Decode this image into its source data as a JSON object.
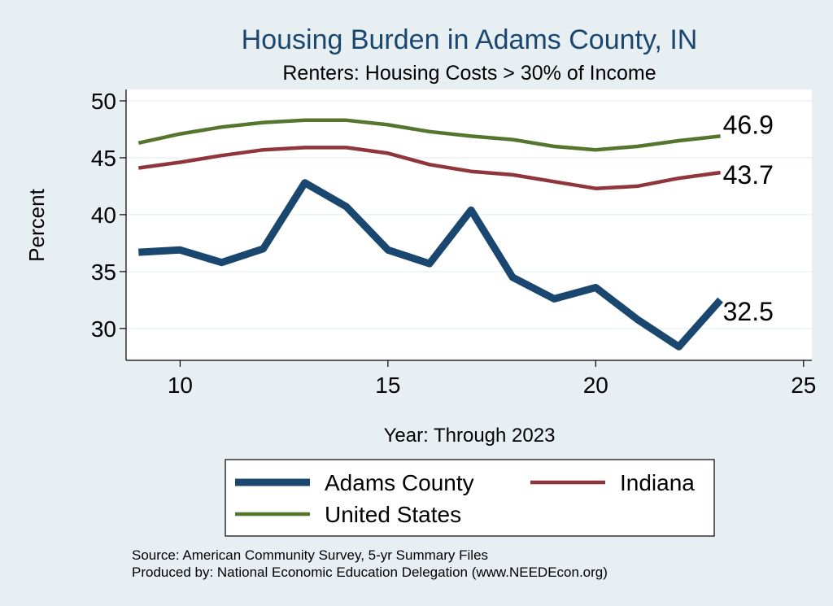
{
  "chart_data": {
    "type": "line",
    "title": "Housing Burden in Adams County, IN",
    "subtitle": "Renters: Housing Costs > 30% of Income",
    "xlabel": "Year: Through 2023",
    "ylabel": "Percent",
    "xlim": [
      8.7,
      25.2
    ],
    "ylim": [
      27.2,
      51
    ],
    "xticks": [
      10,
      15,
      20,
      25
    ],
    "yticks": [
      30,
      35,
      40,
      45,
      50
    ],
    "x": [
      9,
      10,
      11,
      12,
      13,
      14,
      15,
      16,
      17,
      18,
      19,
      20,
      21,
      22,
      23
    ],
    "series": [
      {
        "name": "Adams County",
        "color": "#1a476f",
        "values": [
          36.7,
          36.9,
          35.8,
          37.0,
          42.8,
          40.7,
          36.9,
          35.7,
          40.4,
          34.5,
          32.6,
          33.6,
          30.8,
          28.4,
          32.5
        ],
        "end_label": "32.5"
      },
      {
        "name": "Indiana",
        "color": "#90353b",
        "values": [
          44.1,
          44.6,
          45.2,
          45.7,
          45.9,
          45.9,
          45.4,
          44.4,
          43.8,
          43.5,
          42.9,
          42.3,
          42.5,
          43.2,
          43.7
        ],
        "end_label": "43.7"
      },
      {
        "name": "United States",
        "color": "#55752f",
        "values": [
          46.3,
          47.1,
          47.7,
          48.1,
          48.3,
          48.3,
          47.9,
          47.3,
          46.9,
          46.6,
          46.0,
          45.7,
          46.0,
          46.5,
          46.9
        ],
        "end_label": "46.9"
      }
    ],
    "legend": {
      "position": "bottom",
      "items": [
        "Adams County",
        "Indiana",
        "United States"
      ]
    },
    "grid": true
  },
  "footer": {
    "source": "Source: American Community Survey, 5-yr Summary Files",
    "produced": "Produced by: National Economic Education Delegation (www.NEEDEcon.org)"
  }
}
